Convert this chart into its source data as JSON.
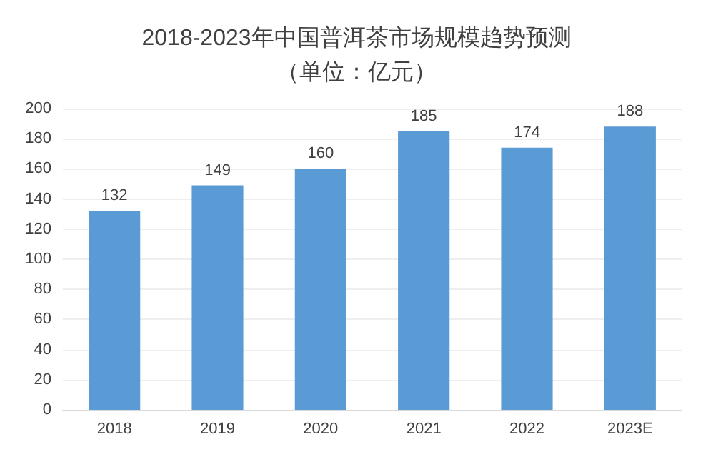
{
  "chart_data": {
    "type": "bar",
    "title": "2018-2023年中国普洱茶市场规模趋势预测",
    "subtitle": "（单位：亿元）",
    "categories": [
      "2018",
      "2019",
      "2020",
      "2021",
      "2022",
      "2023E"
    ],
    "values": [
      132,
      149,
      160,
      185,
      174,
      188
    ],
    "color": "#5b9bd5",
    "ylim": [
      0,
      200
    ],
    "yticks": [
      0,
      20,
      40,
      60,
      80,
      100,
      120,
      140,
      160,
      180,
      200
    ],
    "grid": "y",
    "data_labels": true
  }
}
